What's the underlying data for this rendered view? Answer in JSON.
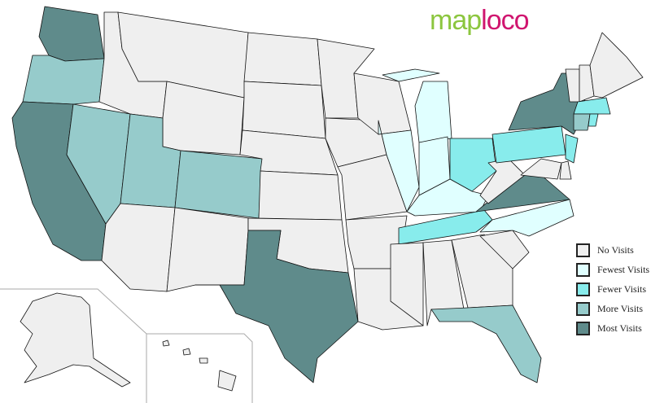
{
  "logo": {
    "part1": "map",
    "part2": "loco"
  },
  "colors": {
    "none": "#efefef",
    "fewest": "#e0ffff",
    "fewer": "#88ecec",
    "more": "#96cbcb",
    "most": "#5f8b8b"
  },
  "legend": [
    {
      "key": "none",
      "label": "No Visits"
    },
    {
      "key": "fewest",
      "label": "Fewest Visits"
    },
    {
      "key": "fewer",
      "label": "Fewer Visits"
    },
    {
      "key": "more",
      "label": "More Visits"
    },
    {
      "key": "most",
      "label": "Most Visits"
    }
  ],
  "states": {
    "WA": "most",
    "OR": "more",
    "CA": "most",
    "NV": "more",
    "ID": "none",
    "MT": "none",
    "WY": "none",
    "UT": "more",
    "CO": "more",
    "AZ": "none",
    "NM": "none",
    "ND": "none",
    "SD": "none",
    "NE": "none",
    "KS": "none",
    "OK": "none",
    "TX": "most",
    "MN": "none",
    "IA": "none",
    "MO": "none",
    "AR": "none",
    "LA": "none",
    "WI": "none",
    "IL": "fewest",
    "MI": "fewest",
    "IN": "fewest",
    "OH": "fewer",
    "KY": "fewest",
    "TN": "fewer",
    "MS": "none",
    "AL": "none",
    "GA": "none",
    "FL": "more",
    "SC": "none",
    "NC": "fewest",
    "VA": "most",
    "WV": "none",
    "PA": "fewer",
    "NY": "most",
    "NJ": "fewer",
    "MD": "none",
    "DE": "none",
    "VT": "none",
    "NH": "none",
    "ME": "none",
    "MA": "fewer",
    "CT": "more",
    "RI": "fewer",
    "AK": "none",
    "HI": "none"
  }
}
